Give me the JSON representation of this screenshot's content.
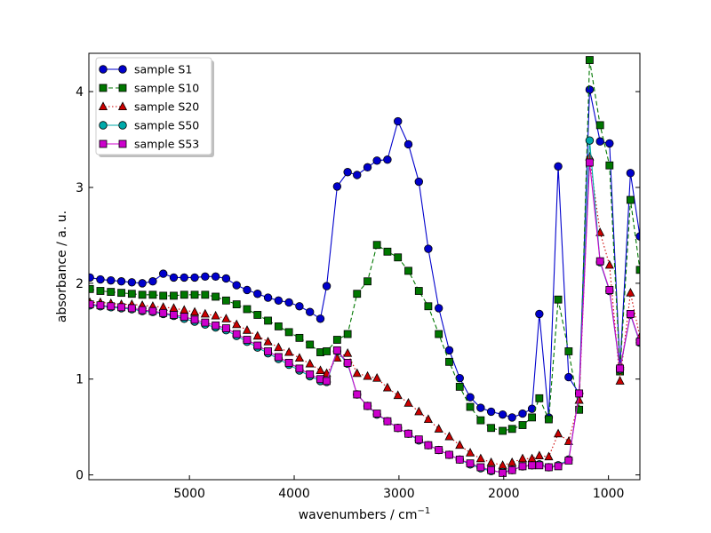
{
  "chart_data": {
    "type": "line",
    "xlabel": "wavenumbers / cm",
    "xlabel_sup": "−1",
    "ylabel": "absorbance / a. u.",
    "xlim": [
      5960,
      700
    ],
    "ylim": [
      -0.05,
      4.4
    ],
    "x_reversed": true,
    "x_ticks": [
      5000,
      4000,
      3000,
      2000,
      1000
    ],
    "x_tick_labels": [
      "5000",
      "4000",
      "3000",
      "2000",
      "1000"
    ],
    "y_ticks": [
      0,
      1,
      2,
      3,
      4
    ],
    "y_tick_labels": [
      "0",
      "1",
      "2",
      "3",
      "4"
    ],
    "grid": false,
    "legend_position": "top-left",
    "x": [
      5950,
      5850,
      5750,
      5650,
      5550,
      5450,
      5350,
      5250,
      5150,
      5050,
      4950,
      4850,
      4750,
      4650,
      4550,
      4450,
      4350,
      4250,
      4150,
      4050,
      3950,
      3850,
      3750,
      3690,
      3590,
      3490,
      3400,
      3300,
      3210,
      3110,
      3010,
      2910,
      2810,
      2720,
      2620,
      2520,
      2420,
      2320,
      2220,
      2120,
      2010,
      1920,
      1820,
      1730,
      1660,
      1570,
      1480,
      1380,
      1280,
      1180,
      1080,
      990,
      890,
      790,
      700
    ],
    "series": [
      {
        "name": "sample S1",
        "color": "#0000cc",
        "marker": "circle",
        "line_style": "solid",
        "values": [
          2.06,
          2.04,
          2.03,
          2.02,
          2.01,
          2.0,
          2.02,
          2.1,
          2.06,
          2.06,
          2.06,
          2.07,
          2.07,
          2.05,
          1.98,
          1.93,
          1.89,
          1.85,
          1.82,
          1.8,
          1.76,
          1.7,
          1.63,
          1.97,
          3.01,
          3.16,
          3.13,
          3.21,
          3.28,
          3.29,
          3.69,
          3.45,
          3.06,
          2.36,
          1.74,
          1.3,
          1.01,
          0.81,
          0.7,
          0.66,
          0.63,
          0.6,
          0.64,
          0.69,
          1.68,
          0.6,
          3.22,
          1.02,
          0.85,
          4.02,
          3.48,
          3.46,
          1.12,
          3.15,
          2.49
        ]
      },
      {
        "name": "sample S10",
        "color": "#007700",
        "marker": "square",
        "line_style": "dashed",
        "values": [
          1.94,
          1.92,
          1.91,
          1.9,
          1.89,
          1.88,
          1.88,
          1.87,
          1.87,
          1.88,
          1.88,
          1.88,
          1.86,
          1.82,
          1.78,
          1.73,
          1.67,
          1.61,
          1.55,
          1.49,
          1.43,
          1.36,
          1.28,
          1.29,
          1.41,
          1.47,
          1.89,
          2.02,
          2.4,
          2.33,
          2.27,
          2.13,
          1.92,
          1.76,
          1.47,
          1.18,
          0.92,
          0.71,
          0.57,
          0.49,
          0.46,
          0.48,
          0.52,
          0.6,
          0.8,
          0.58,
          1.83,
          1.29,
          0.68,
          4.33,
          3.65,
          3.23,
          1.08,
          2.87,
          2.14
        ]
      },
      {
        "name": "sample S20",
        "color": "#cc0000",
        "marker": "triangle",
        "line_style": "dotted",
        "values": [
          1.8,
          1.8,
          1.79,
          1.78,
          1.78,
          1.77,
          1.76,
          1.75,
          1.74,
          1.72,
          1.7,
          1.68,
          1.66,
          1.63,
          1.57,
          1.51,
          1.45,
          1.39,
          1.33,
          1.28,
          1.22,
          1.16,
          1.09,
          1.06,
          1.22,
          1.27,
          1.06,
          1.03,
          1.01,
          0.91,
          0.83,
          0.75,
          0.66,
          0.58,
          0.48,
          0.4,
          0.31,
          0.23,
          0.17,
          0.13,
          0.1,
          0.13,
          0.17,
          0.17,
          0.2,
          0.19,
          0.43,
          0.35,
          0.78,
          3.32,
          2.53,
          2.19,
          0.98,
          1.9,
          1.44
        ]
      },
      {
        "name": "sample S50",
        "color": "#00aaaa",
        "marker": "circle",
        "line_style": "solid",
        "values": [
          1.77,
          1.76,
          1.75,
          1.74,
          1.73,
          1.71,
          1.7,
          1.68,
          1.66,
          1.63,
          1.6,
          1.57,
          1.54,
          1.51,
          1.45,
          1.39,
          1.33,
          1.27,
          1.21,
          1.15,
          1.09,
          1.03,
          0.98,
          0.97,
          1.29,
          1.16,
          0.84,
          0.72,
          0.63,
          0.56,
          0.49,
          0.43,
          0.36,
          0.31,
          0.26,
          0.21,
          0.16,
          0.11,
          0.07,
          0.04,
          0.03,
          0.05,
          0.09,
          0.1,
          0.11,
          0.08,
          0.1,
          0.16,
          0.85,
          3.49,
          2.22,
          1.92,
          1.1,
          1.67,
          1.38
        ]
      },
      {
        "name": "sample S53",
        "color": "#cc00cc",
        "marker": "square",
        "line_style": "solid",
        "values": [
          1.78,
          1.77,
          1.76,
          1.75,
          1.74,
          1.72,
          1.71,
          1.69,
          1.67,
          1.65,
          1.62,
          1.59,
          1.56,
          1.53,
          1.47,
          1.41,
          1.35,
          1.29,
          1.23,
          1.17,
          1.11,
          1.05,
          1.0,
          0.98,
          1.3,
          1.17,
          0.84,
          0.72,
          0.64,
          0.56,
          0.49,
          0.43,
          0.37,
          0.31,
          0.26,
          0.21,
          0.16,
          0.12,
          0.08,
          0.05,
          0.02,
          0.05,
          0.09,
          0.1,
          0.1,
          0.08,
          0.09,
          0.15,
          0.85,
          3.26,
          2.23,
          1.93,
          1.11,
          1.68,
          1.39
        ]
      }
    ]
  }
}
